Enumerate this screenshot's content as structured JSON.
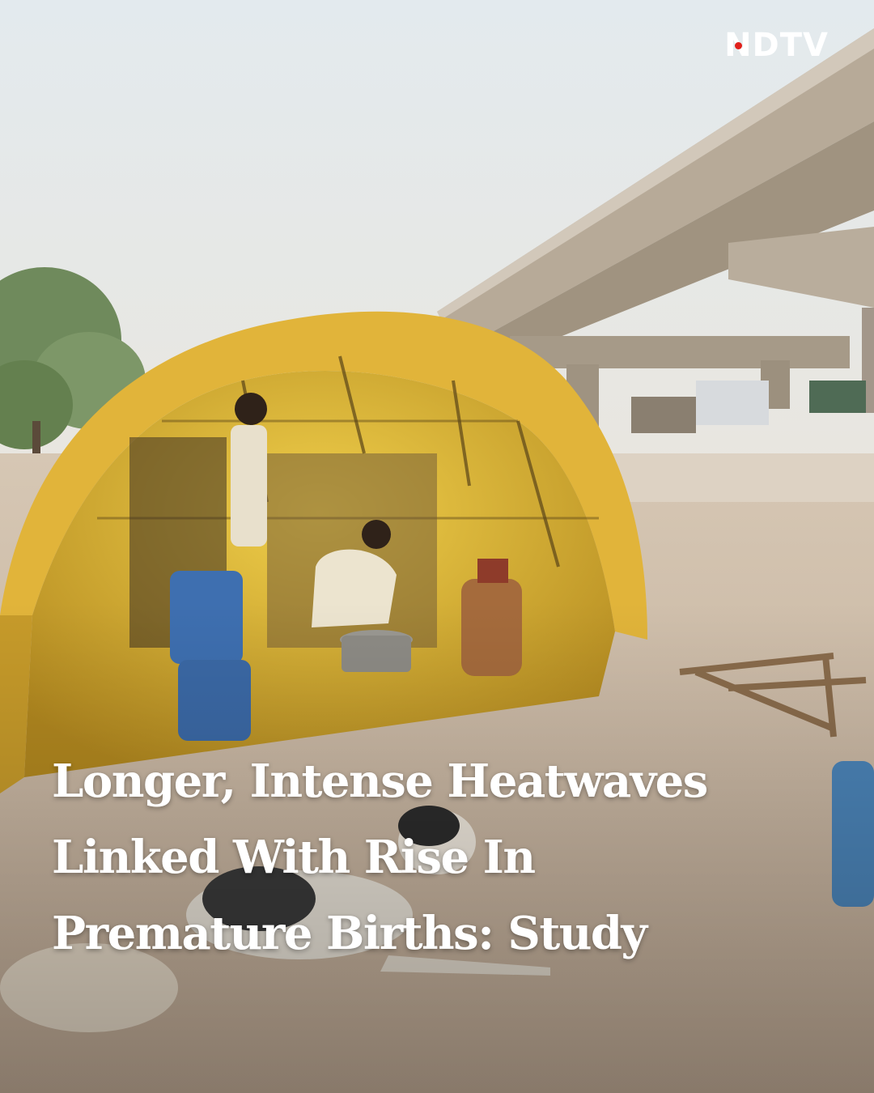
{
  "brand": {
    "logo": "NDTV",
    "accent_color": "#e0201b"
  },
  "headline": {
    "lines": [
      "Longer, Intense Heatwaves",
      "Linked With Rise In",
      "Premature Births: Study"
    ]
  },
  "colors": {
    "sky": "#e6ecef",
    "tent": "#e3b52e",
    "ground": "#cdb9a2",
    "headline_text": "#ffffff"
  }
}
